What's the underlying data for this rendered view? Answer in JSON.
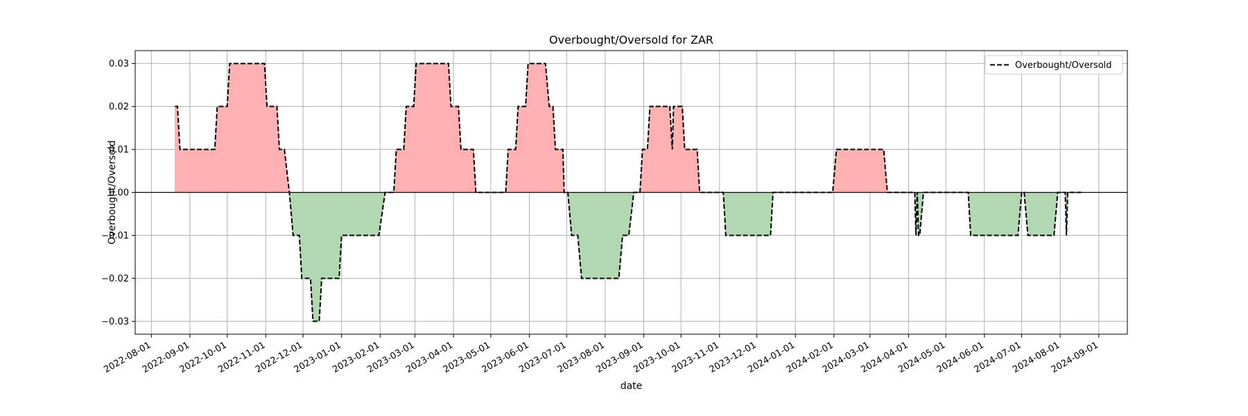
{
  "chart_data": {
    "type": "area",
    "title": "Overbought/Oversold for ZAR",
    "xlabel": "date",
    "ylabel": "Overbought/Oversold",
    "xlim": [
      "2022-07-19",
      "2024-09-24"
    ],
    "ylim": [
      -0.033,
      0.033
    ],
    "grid": true,
    "legend": {
      "position": "top-right",
      "entries": [
        "Overbought/Oversold"
      ]
    },
    "x_ticks": [
      "2022-08-01",
      "2022-09-01",
      "2022-10-01",
      "2022-11-01",
      "2022-12-01",
      "2023-01-01",
      "2023-02-01",
      "2023-03-01",
      "2023-04-01",
      "2023-05-01",
      "2023-06-01",
      "2023-07-01",
      "2023-08-01",
      "2023-09-01",
      "2023-10-01",
      "2023-11-01",
      "2023-12-01",
      "2024-01-01",
      "2024-02-01",
      "2024-03-01",
      "2024-04-01",
      "2024-05-01",
      "2024-06-01",
      "2024-07-01",
      "2024-08-01",
      "2024-09-01"
    ],
    "y_ticks": [
      -0.03,
      -0.02,
      -0.01,
      0.0,
      0.01,
      0.02,
      0.03
    ],
    "y_tick_labels": [
      "−0.03",
      "−0.02",
      "−0.01",
      "0.00",
      "0.01",
      "0.02",
      "0.03"
    ],
    "colors": {
      "positive_fill": "#ffb0b0",
      "negative_fill": "#b2d8b2",
      "line": "#000000",
      "zero_line": "#000000"
    },
    "series": [
      {
        "name": "Overbought/Oversold",
        "style": "dashed",
        "points": [
          [
            "2022-08-20",
            0.02
          ],
          [
            "2022-08-22",
            0.02
          ],
          [
            "2022-08-24",
            0.01
          ],
          [
            "2022-09-21",
            0.01
          ],
          [
            "2022-09-23",
            0.02
          ],
          [
            "2022-10-01",
            0.02
          ],
          [
            "2022-10-03",
            0.03
          ],
          [
            "2022-10-31",
            0.03
          ],
          [
            "2022-11-02",
            0.02
          ],
          [
            "2022-11-10",
            0.02
          ],
          [
            "2022-11-12",
            0.01
          ],
          [
            "2022-11-16",
            0.01
          ],
          [
            "2022-11-20",
            0.0
          ],
          [
            "2022-11-23",
            -0.01
          ],
          [
            "2022-11-28",
            -0.01
          ],
          [
            "2022-11-30",
            -0.02
          ],
          [
            "2022-12-07",
            -0.02
          ],
          [
            "2022-12-09",
            -0.03
          ],
          [
            "2022-12-14",
            -0.03
          ],
          [
            "2022-12-16",
            -0.02
          ],
          [
            "2022-12-30",
            -0.02
          ],
          [
            "2023-01-01",
            -0.01
          ],
          [
            "2023-01-31",
            -0.01
          ],
          [
            "2023-02-05",
            0.0
          ],
          [
            "2023-02-12",
            0.0
          ],
          [
            "2023-02-14",
            0.01
          ],
          [
            "2023-02-20",
            0.01
          ],
          [
            "2023-02-22",
            0.02
          ],
          [
            "2023-02-28",
            0.02
          ],
          [
            "2023-03-02",
            0.03
          ],
          [
            "2023-03-28",
            0.03
          ],
          [
            "2023-03-30",
            0.02
          ],
          [
            "2023-04-05",
            0.02
          ],
          [
            "2023-04-07",
            0.01
          ],
          [
            "2023-04-17",
            0.01
          ],
          [
            "2023-04-19",
            0.0
          ],
          [
            "2023-05-13",
            0.0
          ],
          [
            "2023-05-15",
            0.01
          ],
          [
            "2023-05-21",
            0.01
          ],
          [
            "2023-05-23",
            0.02
          ],
          [
            "2023-05-29",
            0.02
          ],
          [
            "2023-05-31",
            0.03
          ],
          [
            "2023-06-14",
            0.03
          ],
          [
            "2023-06-17",
            0.02
          ],
          [
            "2023-06-20",
            0.02
          ],
          [
            "2023-06-22",
            0.01
          ],
          [
            "2023-06-28",
            0.01
          ],
          [
            "2023-06-29",
            0.0
          ],
          [
            "2023-07-02",
            0.0
          ],
          [
            "2023-07-05",
            -0.01
          ],
          [
            "2023-07-10",
            -0.01
          ],
          [
            "2023-07-13",
            -0.02
          ],
          [
            "2023-08-12",
            -0.02
          ],
          [
            "2023-08-15",
            -0.01
          ],
          [
            "2023-08-20",
            -0.01
          ],
          [
            "2023-08-24",
            0.0
          ],
          [
            "2023-08-29",
            0.0
          ],
          [
            "2023-08-31",
            0.01
          ],
          [
            "2023-09-04",
            0.01
          ],
          [
            "2023-09-06",
            0.02
          ],
          [
            "2023-09-22",
            0.02
          ],
          [
            "2023-09-24",
            0.01
          ],
          [
            "2023-09-25",
            0.02
          ],
          [
            "2023-10-02",
            0.02
          ],
          [
            "2023-10-04",
            0.01
          ],
          [
            "2023-10-14",
            0.01
          ],
          [
            "2023-10-16",
            0.0
          ],
          [
            "2023-11-04",
            0.0
          ],
          [
            "2023-11-06",
            -0.01
          ],
          [
            "2023-12-12",
            -0.01
          ],
          [
            "2023-12-14",
            0.0
          ],
          [
            "2024-01-31",
            0.0
          ],
          [
            "2024-02-03",
            0.01
          ],
          [
            "2024-03-12",
            0.01
          ],
          [
            "2024-03-15",
            0.0
          ],
          [
            "2024-04-06",
            0.0
          ],
          [
            "2024-04-07",
            -0.01
          ],
          [
            "2024-04-08",
            0.0
          ],
          [
            "2024-04-09",
            -0.01
          ],
          [
            "2024-04-10",
            -0.01
          ],
          [
            "2024-04-13",
            0.0
          ],
          [
            "2024-05-19",
            0.0
          ],
          [
            "2024-05-21",
            -0.01
          ],
          [
            "2024-06-28",
            -0.01
          ],
          [
            "2024-07-01",
            0.0
          ],
          [
            "2024-07-03",
            0.0
          ],
          [
            "2024-07-06",
            -0.01
          ],
          [
            "2024-07-27",
            -0.01
          ],
          [
            "2024-07-30",
            0.0
          ],
          [
            "2024-08-05",
            0.0
          ],
          [
            "2024-08-06",
            -0.01
          ],
          [
            "2024-08-07",
            0.0
          ],
          [
            "2024-08-18",
            0.0
          ]
        ]
      }
    ]
  }
}
